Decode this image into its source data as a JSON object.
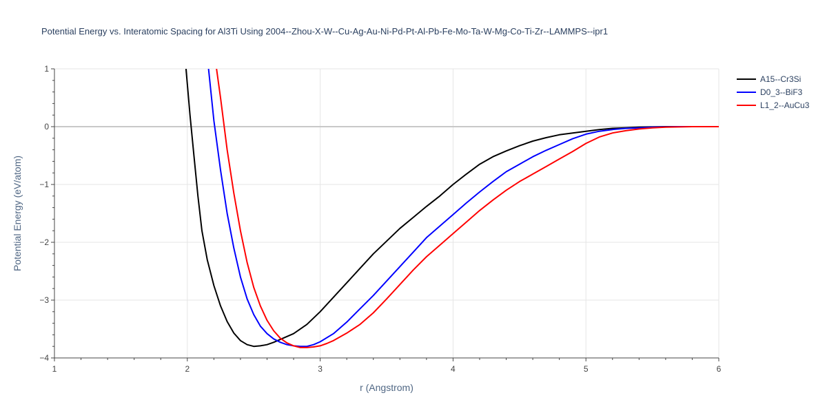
{
  "chart_data": {
    "type": "line",
    "title": "Potential Energy vs. Interatomic Spacing for Al3Ti Using 2004--Zhou-X-W--Cu-Ag-Au-Ni-Pd-Pt-Al-Pb-Fe-Mo-Ta-W-Mg-Co-Ti-Zr--LAMMPS--ipr1",
    "xlabel": "r (Angstrom)",
    "ylabel": "Potential Energy (eV/atom)",
    "xlim": [
      1,
      6
    ],
    "ylim": [
      -4,
      1
    ],
    "xticks": [
      1,
      2,
      3,
      4,
      5,
      6
    ],
    "yticks": [
      -4,
      -3,
      -2,
      -1,
      0,
      1
    ],
    "xtick_labels": [
      "1",
      "2",
      "3",
      "4",
      "5",
      "6"
    ],
    "ytick_labels": [
      "−4",
      "−3",
      "−2",
      "−1",
      "0",
      "1"
    ],
    "grid": true,
    "zero_line": true,
    "legend_position": "top-right",
    "series": [
      {
        "name": "A15--Cr3Si",
        "color": "#000000",
        "x": [
          1.99,
          2.02,
          2.05,
          2.08,
          2.11,
          2.15,
          2.2,
          2.25,
          2.3,
          2.35,
          2.4,
          2.45,
          2.5,
          2.55,
          2.6,
          2.65,
          2.7,
          2.8,
          2.9,
          3.0,
          3.1,
          3.2,
          3.3,
          3.4,
          3.5,
          3.6,
          3.7,
          3.8,
          3.9,
          4.0,
          4.1,
          4.2,
          4.3,
          4.4,
          4.5,
          4.6,
          4.7,
          4.8,
          4.9,
          5.0,
          5.1,
          5.2,
          5.3,
          5.4,
          5.5,
          5.6,
          5.7,
          5.8,
          5.9,
          6.0
        ],
        "y": [
          1.0,
          0.2,
          -0.5,
          -1.2,
          -1.8,
          -2.3,
          -2.75,
          -3.1,
          -3.37,
          -3.57,
          -3.7,
          -3.77,
          -3.8,
          -3.79,
          -3.77,
          -3.73,
          -3.68,
          -3.58,
          -3.42,
          -3.2,
          -2.95,
          -2.7,
          -2.45,
          -2.2,
          -1.98,
          -1.76,
          -1.57,
          -1.38,
          -1.2,
          -1.0,
          -0.82,
          -0.65,
          -0.52,
          -0.42,
          -0.33,
          -0.25,
          -0.19,
          -0.14,
          -0.11,
          -0.08,
          -0.05,
          -0.03,
          -0.02,
          -0.01,
          -0.005,
          0,
          0,
          0,
          0,
          0
        ]
      },
      {
        "name": "D0_3--BiF3",
        "color": "#0000ff",
        "x": [
          2.16,
          2.2,
          2.25,
          2.3,
          2.35,
          2.4,
          2.45,
          2.5,
          2.55,
          2.6,
          2.65,
          2.7,
          2.75,
          2.8,
          2.85,
          2.9,
          2.95,
          3.0,
          3.1,
          3.2,
          3.3,
          3.4,
          3.5,
          3.6,
          3.7,
          3.8,
          3.9,
          4.0,
          4.1,
          4.2,
          4.3,
          4.4,
          4.5,
          4.6,
          4.7,
          4.8,
          4.9,
          5.0,
          5.1,
          5.2,
          5.3,
          5.4,
          5.5,
          5.6,
          5.7,
          5.8,
          5.9,
          6.0
        ],
        "y": [
          1.0,
          0.1,
          -0.75,
          -1.5,
          -2.1,
          -2.6,
          -2.98,
          -3.25,
          -3.45,
          -3.58,
          -3.67,
          -3.73,
          -3.77,
          -3.79,
          -3.8,
          -3.8,
          -3.77,
          -3.72,
          -3.58,
          -3.38,
          -3.15,
          -2.92,
          -2.67,
          -2.42,
          -2.17,
          -1.92,
          -1.72,
          -1.52,
          -1.32,
          -1.13,
          -0.95,
          -0.78,
          -0.65,
          -0.52,
          -0.41,
          -0.31,
          -0.21,
          -0.13,
          -0.08,
          -0.05,
          -0.03,
          -0.02,
          -0.01,
          -0.005,
          0,
          0,
          0,
          0
        ]
      },
      {
        "name": "L1_2--AuCu3",
        "color": "#ff0000",
        "x": [
          2.22,
          2.25,
          2.3,
          2.35,
          2.4,
          2.45,
          2.5,
          2.55,
          2.6,
          2.65,
          2.7,
          2.75,
          2.8,
          2.85,
          2.9,
          2.95,
          3.0,
          3.05,
          3.1,
          3.2,
          3.3,
          3.4,
          3.5,
          3.6,
          3.7,
          3.8,
          3.9,
          4.0,
          4.1,
          4.2,
          4.3,
          4.4,
          4.5,
          4.6,
          4.7,
          4.8,
          4.9,
          5.0,
          5.1,
          5.2,
          5.3,
          5.4,
          5.5,
          5.6,
          5.7,
          5.8,
          5.9,
          6.0
        ],
        "y": [
          1.0,
          0.5,
          -0.4,
          -1.15,
          -1.8,
          -2.35,
          -2.78,
          -3.1,
          -3.35,
          -3.53,
          -3.66,
          -3.74,
          -3.79,
          -3.82,
          -3.82,
          -3.81,
          -3.79,
          -3.75,
          -3.7,
          -3.57,
          -3.42,
          -3.22,
          -2.98,
          -2.73,
          -2.48,
          -2.25,
          -2.05,
          -1.85,
          -1.65,
          -1.45,
          -1.27,
          -1.1,
          -0.95,
          -0.82,
          -0.69,
          -0.56,
          -0.43,
          -0.29,
          -0.18,
          -0.11,
          -0.07,
          -0.04,
          -0.02,
          -0.01,
          -0.005,
          0,
          0,
          0
        ]
      }
    ]
  }
}
